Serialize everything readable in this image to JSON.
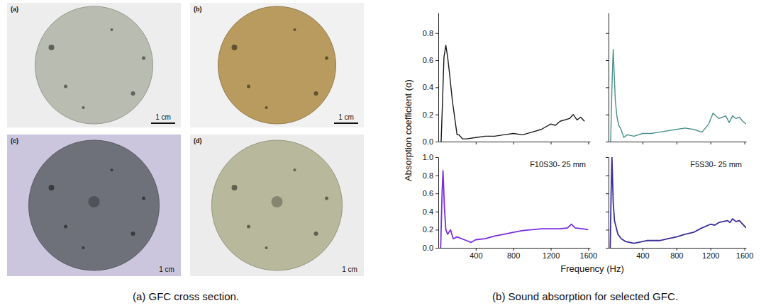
{
  "figure": {
    "captions": [
      "(a) GFC cross section.",
      "(b) Sound absorption for selected GFC."
    ],
    "photos": [
      {
        "label": "(a)",
        "scale_bar": "1 cm"
      },
      {
        "label": "(b)",
        "scale_bar": "1 cm"
      },
      {
        "label": "(c)",
        "scale_bar": "1 cm"
      },
      {
        "label": "(d)",
        "scale_bar": "1 cm"
      }
    ],
    "ylabel": "Absorption coefficient (α)",
    "xlabel": "Frequency (Hz)"
  },
  "chart_data": [
    {
      "type": "line",
      "x": [
        30,
        45,
        60,
        80,
        100,
        120,
        150,
        170,
        200,
        220,
        260,
        300,
        400,
        500,
        600,
        700,
        800,
        900,
        1000,
        1100,
        1200,
        1250,
        1300,
        1400,
        1440,
        1480,
        1520,
        1560
      ],
      "series": [
        {
          "color": "#1a1a1a",
          "values": [
            0.0,
            0.3,
            0.62,
            0.71,
            0.62,
            0.5,
            0.3,
            0.2,
            0.05,
            0.05,
            0.02,
            0.02,
            0.03,
            0.04,
            0.04,
            0.05,
            0.06,
            0.05,
            0.07,
            0.09,
            0.13,
            0.12,
            0.15,
            0.17,
            0.2,
            0.16,
            0.18,
            0.15
          ]
        }
      ],
      "xlim": [
        0,
        1620
      ],
      "xticks": [
        400,
        800,
        1200,
        1600
      ],
      "ylim": [
        0,
        0.95
      ],
      "yticks": [
        {
          "value": 0,
          "label": "0.0"
        },
        {
          "value": 0.2,
          "label": "0.2"
        },
        {
          "value": 0.4,
          "label": "0.4"
        },
        {
          "value": 0.6,
          "label": "0.6"
        },
        {
          "value": 0.8,
          "label": "0.8"
        }
      ],
      "tick_labels": "y"
    },
    {
      "type": "line",
      "x": [
        25,
        40,
        55,
        80,
        100,
        120,
        140,
        180,
        220,
        300,
        400,
        500,
        600,
        800,
        900,
        1000,
        1100,
        1180,
        1230,
        1300,
        1380,
        1420,
        1460,
        1500,
        1540,
        1580,
        1620
      ],
      "series": [
        {
          "color": "#4a8f8a",
          "values": [
            0.0,
            0.4,
            0.68,
            0.3,
            0.18,
            0.12,
            0.1,
            0.03,
            0.05,
            0.04,
            0.06,
            0.06,
            0.07,
            0.09,
            0.1,
            0.09,
            0.07,
            0.13,
            0.21,
            0.17,
            0.19,
            0.14,
            0.19,
            0.17,
            0.18,
            0.15,
            0.13
          ]
        }
      ],
      "xlim": [
        0,
        1620
      ],
      "xticks": [
        400,
        800,
        1200,
        1600
      ],
      "ylim": [
        0,
        0.95
      ],
      "yticks": [
        0,
        0.2,
        0.4,
        0.6,
        0.8
      ],
      "tick_labels": false
    },
    {
      "type": "line",
      "title": "F10S30- 25 mm",
      "x": [
        25,
        40,
        50,
        65,
        80,
        100,
        130,
        160,
        200,
        300,
        350,
        400,
        500,
        600,
        700,
        800,
        900,
        1000,
        1100,
        1200,
        1300,
        1380,
        1420,
        1460,
        1540,
        1600
      ],
      "series": [
        {
          "color": "#7b2fe0",
          "values": [
            0.0,
            0.6,
            0.85,
            0.45,
            0.2,
            0.15,
            0.2,
            0.1,
            0.12,
            0.08,
            0.06,
            0.09,
            0.1,
            0.13,
            0.15,
            0.17,
            0.19,
            0.2,
            0.21,
            0.21,
            0.21,
            0.22,
            0.26,
            0.22,
            0.21,
            0.2
          ]
        }
      ],
      "xlim": [
        0,
        1620
      ],
      "xticks": [
        400,
        800,
        1200,
        1600
      ],
      "ylim": [
        0,
        1.0
      ],
      "yticks": [
        {
          "value": 0,
          "label": "0.0"
        },
        {
          "value": 0.2,
          "label": "0.2"
        },
        {
          "value": 0.4,
          "label": "0.4"
        },
        {
          "value": 0.6,
          "label": "0.6"
        },
        {
          "value": 0.8,
          "label": "0.8"
        },
        {
          "value": 1.0,
          "label": "1.0"
        }
      ],
      "tick_labels": true
    },
    {
      "type": "line",
      "title": "F5S30- 25 mm",
      "x": [
        20,
        30,
        40,
        55,
        70,
        110,
        150,
        200,
        300,
        400,
        450,
        600,
        700,
        800,
        900,
        1000,
        1100,
        1200,
        1250,
        1300,
        1400,
        1430,
        1460,
        1500,
        1540,
        1580,
        1620
      ],
      "series": [
        {
          "color": "#3a2f9a",
          "values": [
            0.0,
            0.6,
            1.0,
            0.5,
            0.3,
            0.15,
            0.1,
            0.07,
            0.05,
            0.07,
            0.08,
            0.08,
            0.1,
            0.12,
            0.15,
            0.17,
            0.22,
            0.26,
            0.25,
            0.28,
            0.3,
            0.28,
            0.32,
            0.29,
            0.3,
            0.26,
            0.22
          ]
        }
      ],
      "xlim": [
        0,
        1620
      ],
      "xticks": [
        400,
        800,
        1200,
        1600
      ],
      "ylim": [
        0,
        1.0
      ],
      "yticks": [
        0,
        0.2,
        0.4,
        0.6,
        0.8,
        1.0
      ],
      "tick_labels": "x"
    }
  ]
}
